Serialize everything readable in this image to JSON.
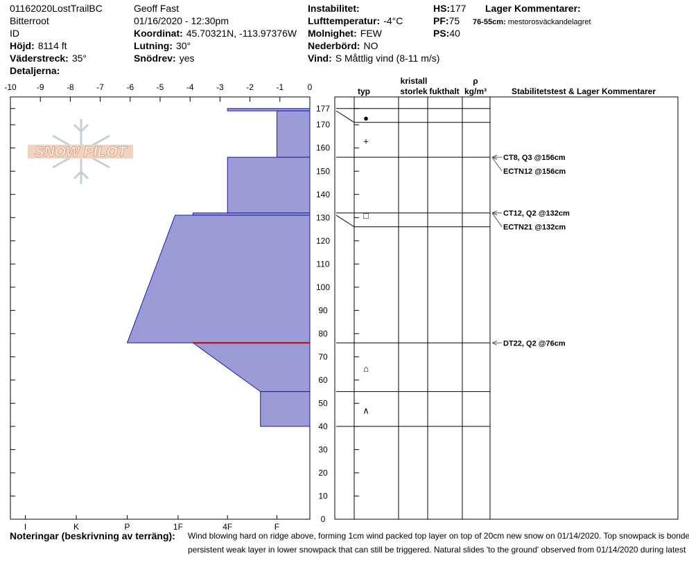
{
  "header": {
    "col1": [
      "01162020LostTrailBC",
      "Bitterroot",
      "ID",
      {
        "label": "Höjd:",
        "value": "8114 ft"
      },
      {
        "label": "Väderstreck:",
        "value": "35°"
      },
      {
        "label": "Detaljerna:"
      }
    ],
    "col2": [
      "Geoff Fast",
      "01/16/2020 - 12:30pm",
      {
        "label": "Koordinat:",
        "value": "45.70321N, -113.97376W"
      },
      {
        "label": "Lutning:",
        "value": "30°"
      },
      {
        "label": "Snödrev:",
        "value": "yes"
      }
    ],
    "col3": [
      {
        "label": "Instabilitet:"
      },
      {
        "label": "Lufttemperatur:",
        "value": "-4°C"
      },
      {
        "label": "Molnighet:",
        "value": "FEW"
      },
      {
        "label": "Nederbörd:",
        "value": "NO"
      },
      {
        "label": "Vind:",
        "value": "S Måttlig vind (8-11 m/s)"
      }
    ],
    "col4": [
      {
        "label": "HS:",
        "value": "177"
      },
      {
        "label": "PF:",
        "value": "75"
      },
      {
        "label": "PS:",
        "value": "40"
      }
    ],
    "layer_comments_title": "Lager Kommentarer:",
    "layer_comments": [
      {
        "label": "76-55cm:",
        "value": "mestorosväckandelagret"
      }
    ]
  },
  "logo": "SNOW PILOT",
  "chart_data": {
    "type": "snow-profile",
    "xlim": [
      -10,
      0
    ],
    "xticks": [
      -10,
      -9,
      -8,
      -7,
      -6,
      -5,
      -4,
      -3,
      -2,
      -1,
      0
    ],
    "ylim": [
      0,
      182
    ],
    "yticks": [
      0,
      10,
      20,
      30,
      40,
      50,
      60,
      70,
      80,
      90,
      100,
      110,
      120,
      130,
      140,
      150,
      160,
      170,
      177
    ],
    "hand_hardness_ticks": [
      {
        "value": -9.5,
        "label": "I"
      },
      {
        "value": -7.8,
        "label": "K"
      },
      {
        "value": -6.1,
        "label": "P"
      },
      {
        "value": -4.4,
        "label": "1F"
      },
      {
        "value": -2.75,
        "label": "4F"
      },
      {
        "value": -1.1,
        "label": "F"
      }
    ],
    "color": "#9b9bd8",
    "layers": [
      {
        "top": 177,
        "bottom": 176,
        "hardness_top": -2.75,
        "hardness_bottom": -2.75
      },
      {
        "top": 176,
        "bottom": 156,
        "hardness_top": -1.1,
        "hardness_bottom": -1.1
      },
      {
        "top": 156,
        "bottom": 132,
        "hardness_top": -2.75,
        "hardness_bottom": -2.75
      },
      {
        "top": 132,
        "bottom": 131,
        "hardness_top": -3.9,
        "hardness_bottom": -3.9
      },
      {
        "top": 131,
        "bottom": 76,
        "hardness_top": -4.5,
        "hardness_bottom": -6.1
      },
      {
        "top": 76,
        "bottom": 55,
        "hardness_top": -3.9,
        "hardness_bottom": -1.65
      },
      {
        "top": 55,
        "bottom": 40,
        "hardness_top": -1.65,
        "hardness_bottom": -1.65
      }
    ],
    "critical_height": 76,
    "critical_color": "#cc0000",
    "column_headers": [
      [
        "typ"
      ],
      [
        "kristall",
        "storlek"
      ],
      [
        "fukthalt"
      ],
      [
        "ρ",
        "kg/m³"
      ],
      [
        "Stabilitetstest & Lager Kommentarer"
      ]
    ],
    "grain_symbols": [
      {
        "height": 173,
        "symbol": "●"
      },
      {
        "height": 163,
        "symbol": "+"
      },
      {
        "height": 131,
        "symbol": "□"
      },
      {
        "height": 65,
        "symbol": "⌂"
      },
      {
        "height": 47,
        "symbol": "∧"
      }
    ],
    "stability_tests": [
      {
        "height": 156,
        "text": "CT8, Q3 @156cm"
      },
      {
        "height": 156,
        "text": "ECTN12 @156cm"
      },
      {
        "height": 132,
        "text": "CT12, Q2 @132cm"
      },
      {
        "height": 132,
        "text": "ECTN21 @132cm"
      },
      {
        "height": 76,
        "text": "DT22, Q2 @76cm"
      }
    ]
  },
  "notes": {
    "label": "Noteringar (beskrivning av terräng):",
    "lines": [
      "Wind blowing hard on ridge above, forming 1cm wind packed top layer on top of 20cm new snow on 01/14/2020. Top snowpack is bonded",
      "persistent weak layer in lower snowpack that can still be triggered. Natural slides 'to the ground' observed from 01/14/2020 during latest"
    ]
  }
}
